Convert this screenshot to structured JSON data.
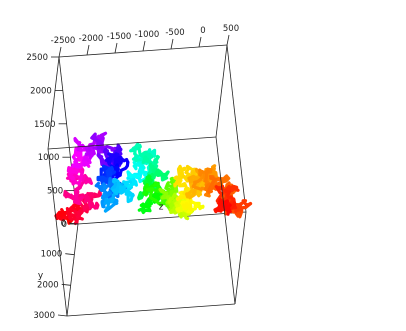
{
  "chart_data": {
    "type": "scatter",
    "title": "",
    "subtitle": "",
    "projection": "3d",
    "grid": false,
    "legend": "none",
    "axes": {
      "x": {
        "label": "",
        "range": [
          -2500,
          500
        ],
        "ticks": [
          "-2500",
          "-2000",
          "-1500",
          "-1000",
          "-500",
          "0",
          "500"
        ]
      },
      "y": {
        "label": "y",
        "range": [
          0,
          3000
        ],
        "ticks": [
          "3000",
          "2000",
          "1000",
          "0"
        ]
      },
      "z": {
        "label": "z",
        "range": [
          0,
          2500
        ],
        "ticks": [
          "2500",
          "2000",
          "1500",
          "1000",
          "500",
          "0"
        ]
      }
    },
    "coloring": "rainbow gradient along path order",
    "colors": [
      "#ff0000",
      "#ff00ff",
      "#0000ff",
      "#00ffff",
      "#00ff00",
      "#ffff00",
      "#ff8000",
      "#ff0000"
    ],
    "series": [
      {
        "path_waypoints": [
          {
            "x": -2350,
            "y": 2200,
            "z": 1080
          },
          {
            "x": -2050,
            "y": 2400,
            "z": 1400
          },
          {
            "x": -2200,
            "y": 2100,
            "z": 1900
          },
          {
            "x": -1750,
            "y": 2300,
            "z": 2100
          },
          {
            "x": -1250,
            "y": 2200,
            "z": 2050
          },
          {
            "x": -1500,
            "y": 1900,
            "z": 1500
          },
          {
            "x": -1600,
            "y": 1600,
            "z": 1100
          },
          {
            "x": -1100,
            "y": 1700,
            "z": 1500
          },
          {
            "x": -800,
            "y": 1500,
            "z": 1350
          },
          {
            "x": -1000,
            "y": 1300,
            "z": 900
          },
          {
            "x": -600,
            "y": 1300,
            "z": 1000
          },
          {
            "x": -500,
            "y": 1200,
            "z": 650
          },
          {
            "x": -300,
            "y": 1300,
            "z": 1050
          },
          {
            "x": 0,
            "y": 1100,
            "z": 1000
          },
          {
            "x": 200,
            "y": 1000,
            "z": 950
          },
          {
            "x": 450,
            "y": 950,
            "z": 500
          },
          {
            "x": 200,
            "y": 800,
            "z": 350
          }
        ]
      }
    ]
  }
}
